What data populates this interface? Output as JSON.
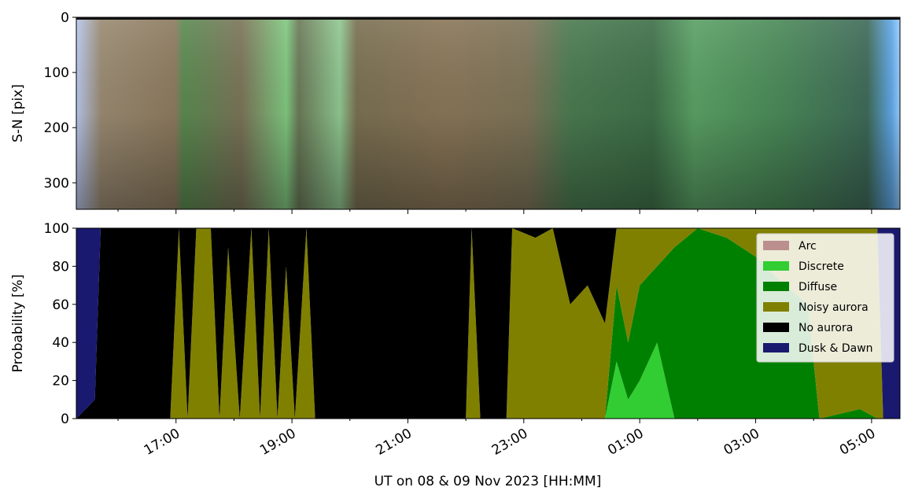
{
  "chart_data": [
    {
      "type": "image",
      "ylabel": "S-N [pix]",
      "ylim": [
        0,
        348
      ],
      "y_inverted": true,
      "yticks": [
        0,
        100,
        200,
        300
      ]
    },
    {
      "type": "stackedarea",
      "ylabel": "Probability [%]",
      "xlabel": "UT on 08 & 09 Nov 2023 [HH:MM]",
      "xlim": [
        15.28,
        29.49
      ],
      "ylim": [
        0,
        100
      ],
      "yticks": [
        0,
        20,
        40,
        60,
        80,
        100
      ],
      "xticks": [
        {
          "value": 17,
          "label": "17:00"
        },
        {
          "value": 19,
          "label": "19:00"
        },
        {
          "value": 21,
          "label": "21:00"
        },
        {
          "value": 23,
          "label": "23:00"
        },
        {
          "value": 25,
          "label": "01:00"
        },
        {
          "value": 27,
          "label": "03:00"
        },
        {
          "value": 29,
          "label": "05:00"
        }
      ],
      "xminorticks": [
        16,
        18,
        20,
        22,
        24,
        26,
        28
      ],
      "legend": "upper right",
      "x": [
        15.28,
        15.6,
        15.7,
        16.9,
        17.05,
        17.2,
        17.35,
        17.6,
        17.75,
        17.9,
        18.1,
        18.3,
        18.45,
        18.6,
        18.75,
        18.9,
        19.05,
        19.25,
        19.4,
        22.0,
        22.1,
        22.25,
        22.7,
        22.8,
        23.2,
        23.5,
        23.8,
        24.1,
        24.4,
        24.6,
        24.8,
        25.0,
        25.3,
        25.6,
        26.0,
        26.5,
        27.0,
        27.5,
        27.9,
        28.1,
        28.8,
        29.1,
        29.2,
        29.49
      ],
      "series": [
        {
          "name": "Arc",
          "color": "#bc8f8f",
          "values": [
            0,
            0,
            0,
            0,
            0,
            0,
            0,
            0,
            0,
            0,
            0,
            0,
            0,
            0,
            0,
            0,
            0,
            0,
            0,
            0,
            0,
            0,
            0,
            0,
            0,
            0,
            0,
            0,
            0,
            0,
            0,
            0,
            0,
            0,
            0,
            0,
            0,
            0,
            0,
            0,
            0,
            0,
            0,
            0
          ]
        },
        {
          "name": "Discrete",
          "color": "#32cd32",
          "values": [
            0,
            0,
            0,
            0,
            0,
            0,
            0,
            0,
            0,
            0,
            0,
            0,
            0,
            0,
            0,
            0,
            0,
            0,
            0,
            0,
            0,
            0,
            0,
            0,
            0,
            0,
            0,
            0,
            0,
            30,
            10,
            20,
            40,
            0,
            0,
            0,
            0,
            0,
            0,
            0,
            0,
            0,
            0,
            0
          ]
        },
        {
          "name": "Diffuse",
          "color": "#008000",
          "values": [
            0,
            0,
            0,
            0,
            0,
            0,
            0,
            0,
            0,
            0,
            0,
            0,
            0,
            0,
            0,
            0,
            0,
            0,
            0,
            0,
            0,
            0,
            0,
            0,
            0,
            0,
            0,
            0,
            0,
            40,
            30,
            50,
            40,
            90,
            100,
            95,
            85,
            70,
            60,
            0,
            5,
            0,
            0,
            0
          ]
        },
        {
          "name": "Noisy aurora",
          "color": "#808000",
          "values": [
            0,
            0,
            0,
            0,
            100,
            0,
            100,
            100,
            0,
            90,
            0,
            100,
            0,
            100,
            0,
            80,
            0,
            100,
            0,
            0,
            100,
            0,
            0,
            100,
            95,
            100,
            60,
            70,
            50,
            30,
            60,
            30,
            20,
            10,
            0,
            5,
            15,
            30,
            40,
            100,
            95,
            100,
            0,
            0
          ]
        },
        {
          "name": "No aurora",
          "color": "#000000",
          "values": [
            0,
            10,
            100,
            100,
            0,
            100,
            0,
            0,
            100,
            10,
            100,
            0,
            100,
            0,
            100,
            20,
            100,
            0,
            100,
            100,
            0,
            100,
            100,
            0,
            5,
            0,
            40,
            30,
            50,
            0,
            0,
            0,
            0,
            0,
            0,
            0,
            0,
            0,
            0,
            0,
            0,
            0,
            0,
            0
          ]
        },
        {
          "name": "Dusk & Dawn",
          "color": "#191970",
          "values": [
            100,
            90,
            0,
            0,
            0,
            0,
            0,
            0,
            0,
            0,
            0,
            0,
            0,
            0,
            0,
            0,
            0,
            0,
            0,
            0,
            0,
            0,
            0,
            0,
            0,
            0,
            0,
            0,
            0,
            0,
            0,
            0,
            0,
            0,
            0,
            0,
            0,
            0,
            0,
            0,
            0,
            0,
            100,
            100
          ]
        }
      ]
    }
  ]
}
